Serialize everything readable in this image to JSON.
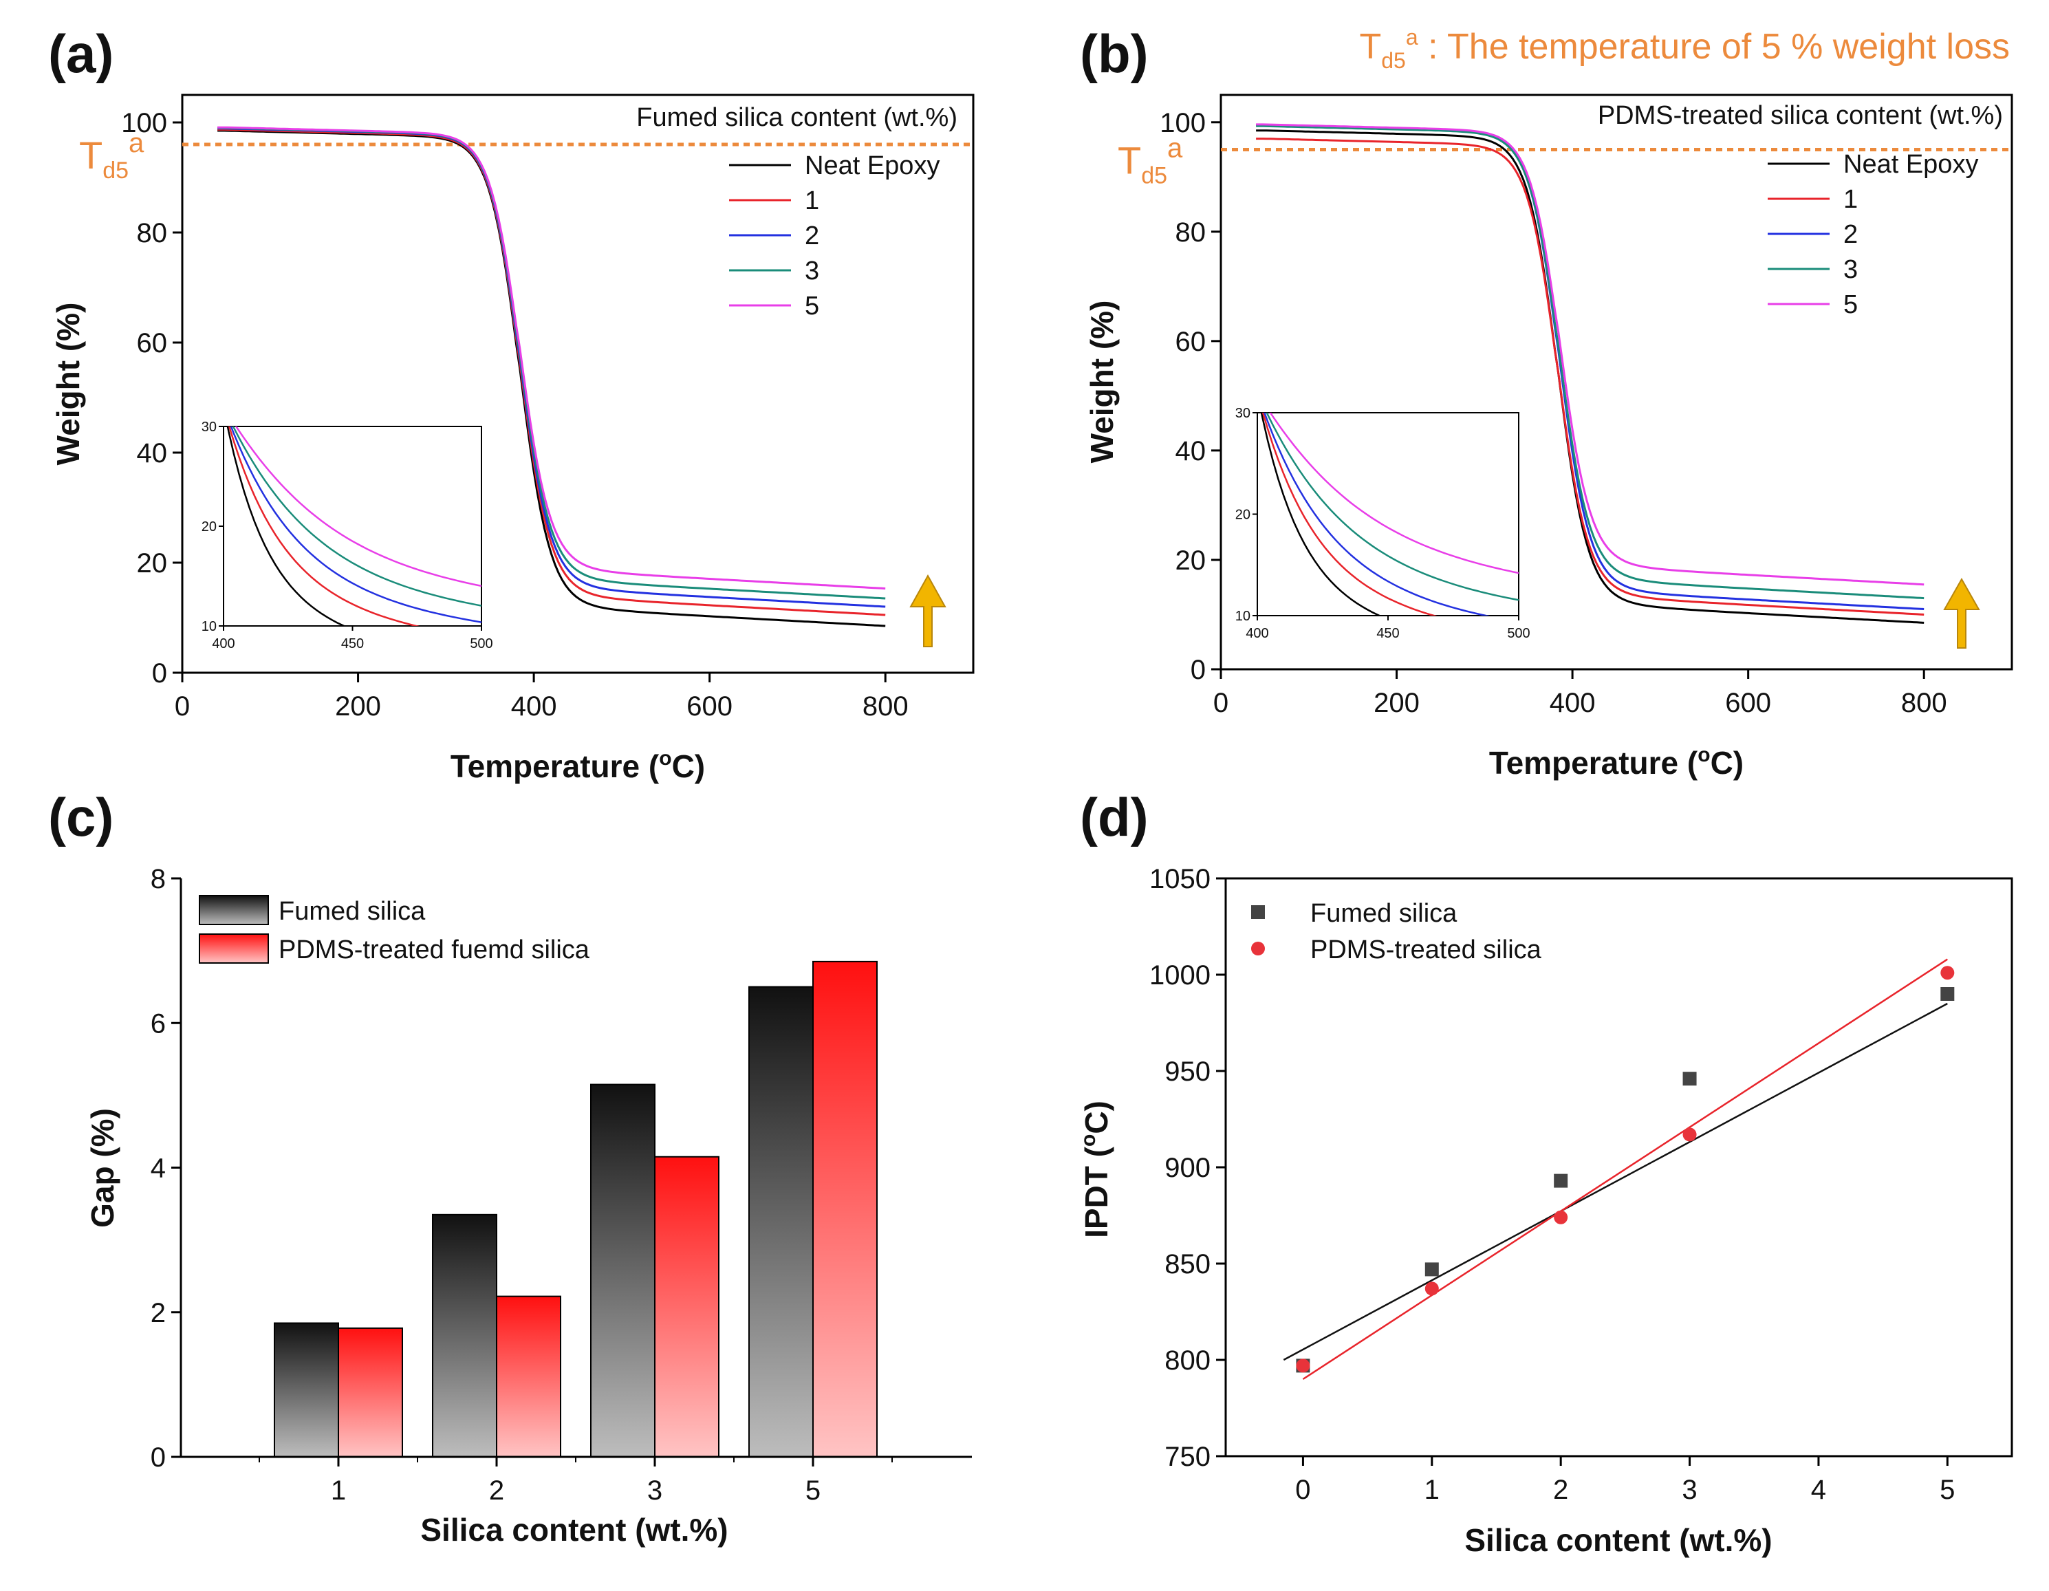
{
  "figure_note": "Tₐ annotation",
  "header_note": {
    "symbol_main": "T",
    "symbol_sub": "d5",
    "symbol_sup": "a",
    "text": " : The temperature of 5 % weight loss"
  },
  "colors": {
    "neat": "#000000",
    "c1": "#e8242b",
    "c2": "#2331e0",
    "c3": "#1a8c7a",
    "c5": "#e83ee8",
    "annotation": "#ec8a3c",
    "arrow": "#f2b500",
    "fumed_point": "#444444",
    "pdms_point": "#e8333a"
  },
  "chart_data": [
    {
      "id": "a",
      "type": "line",
      "panel_label": "(a)",
      "title": "",
      "xlabel": "Temperature (",
      "xlabel_sup": "o",
      "xlabel_tail": "C)",
      "ylabel": "Weight (%)",
      "xlim": [
        0,
        900
      ],
      "ylim": [
        0,
        105
      ],
      "xticks": [
        0,
        200,
        400,
        600,
        800
      ],
      "yticks": [
        0,
        20,
        40,
        60,
        80,
        100
      ],
      "legend_title": "Fumed silica content (wt.%)",
      "annotation": {
        "main": "T",
        "sub": "d5",
        "sup": "a",
        "y": 96
      },
      "series": [
        {
          "name": "Neat Epoxy",
          "color_key": "neat",
          "onset": 384,
          "w": 17,
          "final": 5.5,
          "plateau": 98.5
        },
        {
          "name": "1",
          "color_key": "c1",
          "onset": 384,
          "w": 17,
          "final": 7.5,
          "plateau": 98.7
        },
        {
          "name": "2",
          "color_key": "c2",
          "onset": 384,
          "w": 17,
          "final": 9.0,
          "plateau": 98.9
        },
        {
          "name": "3",
          "color_key": "c3",
          "onset": 384,
          "w": 17,
          "final": 10.5,
          "plateau": 99.0
        },
        {
          "name": "5",
          "color_key": "c5",
          "onset": 384,
          "w": 17,
          "final": 12.3,
          "plateau": 99.1
        }
      ],
      "inset": {
        "xlim": [
          400,
          500
        ],
        "ylim": [
          10,
          30
        ],
        "xticks": [
          400,
          450,
          500
        ],
        "yticks": [
          10,
          20,
          30
        ]
      }
    },
    {
      "id": "b",
      "type": "line",
      "panel_label": "(b)",
      "xlabel": "Temperature (",
      "xlabel_sup": "o",
      "xlabel_tail": "C)",
      "ylabel": "Weight (%)",
      "xlim": [
        0,
        900
      ],
      "ylim": [
        0,
        105
      ],
      "xticks": [
        0,
        200,
        400,
        600,
        800
      ],
      "yticks": [
        0,
        20,
        40,
        60,
        80,
        100
      ],
      "legend_title": "PDMS-treated silica content (wt.%)",
      "annotation": {
        "main": "T",
        "sub": "d5",
        "sup": "a",
        "y": 95
      },
      "series": [
        {
          "name": "Neat Epoxy",
          "color_key": "neat",
          "onset": 383,
          "w": 17,
          "final": 5.5,
          "plateau": 98.5
        },
        {
          "name": "1",
          "color_key": "c1",
          "onset": 383,
          "w": 17,
          "final": 7.0,
          "plateau": 97.0
        },
        {
          "name": "2",
          "color_key": "c2",
          "onset": 385,
          "w": 17,
          "final": 8.0,
          "plateau": 99.5
        },
        {
          "name": "3",
          "color_key": "c3",
          "onset": 385,
          "w": 17,
          "final": 10.0,
          "plateau": 99.3
        },
        {
          "name": "5",
          "color_key": "c5",
          "onset": 386,
          "w": 17,
          "final": 12.5,
          "plateau": 99.6
        }
      ],
      "inset": {
        "xlim": [
          400,
          500
        ],
        "ylim": [
          10,
          30
        ],
        "xticks": [
          400,
          450,
          500
        ],
        "yticks": [
          10,
          20,
          30
        ]
      }
    },
    {
      "id": "c",
      "type": "bar",
      "panel_label": "(c)",
      "xlabel": "Silica content (wt.%)",
      "ylabel": "Gap (%)",
      "ylim": [
        0,
        8
      ],
      "yticks": [
        0,
        2,
        4,
        6,
        8
      ],
      "categories": [
        "1",
        "2",
        "3",
        "5"
      ],
      "series": [
        {
          "name": "Fumed silica",
          "values": [
            1.85,
            3.35,
            5.15,
            6.5
          ]
        },
        {
          "name": "PDMS-treated fuemd silica",
          "values": [
            1.78,
            2.22,
            4.15,
            6.85
          ]
        }
      ]
    },
    {
      "id": "d",
      "type": "scatter",
      "panel_label": "(d)",
      "xlabel": "Silica content (wt.%)",
      "ylabel": "IPDT (",
      "ylabel_sup": "o",
      "ylabel_tail": "C)",
      "xlim": [
        -0.6,
        5.5
      ],
      "ylim": [
        750,
        1050
      ],
      "xticks": [
        0,
        1,
        2,
        3,
        4,
        5
      ],
      "yticks": [
        750,
        800,
        850,
        900,
        950,
        1000,
        1050
      ],
      "series": [
        {
          "name": "Fumed silica",
          "x": [
            0,
            1,
            2,
            3,
            5
          ],
          "y": [
            797,
            847,
            893,
            946,
            990
          ],
          "fit": [
            [
              -0.15,
              800
            ],
            [
              5,
              985
            ]
          ]
        },
        {
          "name": "PDMS-treated silica",
          "x": [
            0,
            1,
            2,
            3,
            5
          ],
          "y": [
            797,
            837,
            874,
            917,
            1001
          ],
          "fit": [
            [
              0,
              790
            ],
            [
              5,
              1008
            ]
          ]
        }
      ]
    }
  ]
}
